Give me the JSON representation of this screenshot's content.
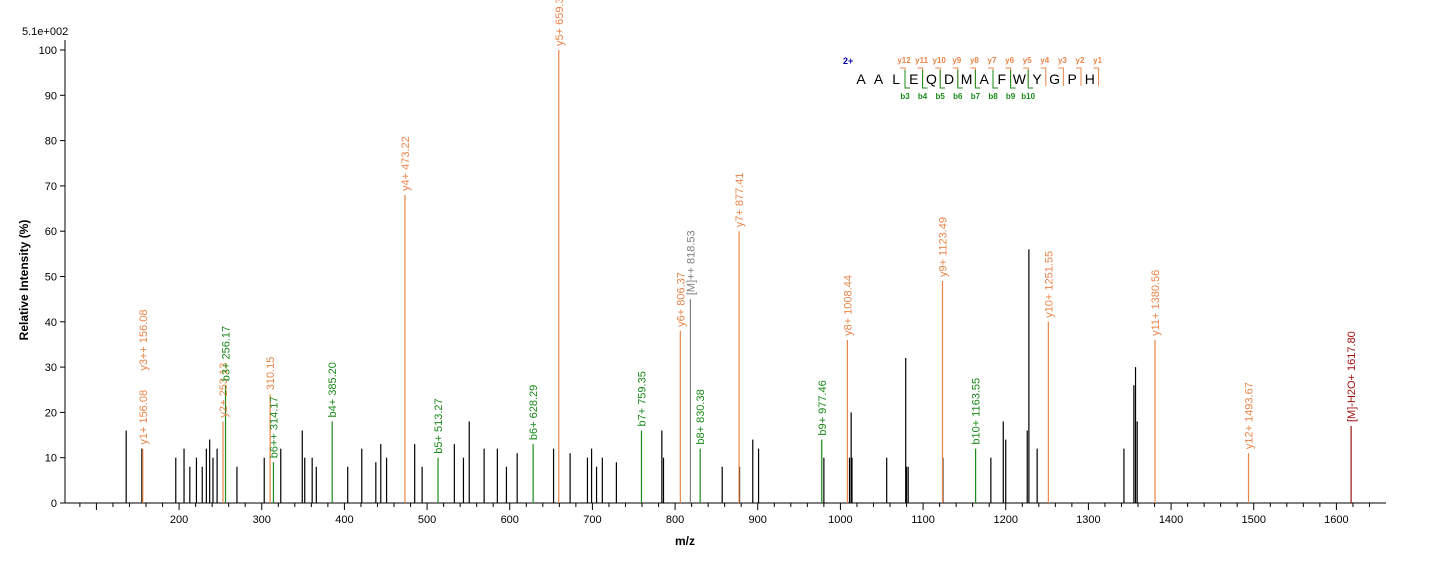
{
  "chart_data": {
    "type": "bar",
    "title": "",
    "xlabel": "m/z",
    "ylabel": "Relative   Intensity (%)",
    "y_max_label": "5.1e+002",
    "xlim": [
      62,
      1660
    ],
    "ylim": [
      0,
      100
    ],
    "x_ticks": [
      200,
      300,
      400,
      500,
      600,
      700,
      800,
      900,
      1000,
      1100,
      1200,
      1300,
      1400,
      1500,
      1600
    ],
    "y_ticks": [
      0,
      10,
      20,
      30,
      40,
      50,
      60,
      70,
      80,
      90,
      100
    ],
    "colors": {
      "y": "#E8854A",
      "b": "#1A8A1A",
      "precursor": "#7F7F7F",
      "water": "#A01010",
      "unassigned": "#000000",
      "charge": "#0000AA"
    },
    "labeled_peaks": [
      {
        "mz": 156.08,
        "intensity": 12,
        "ion": "y",
        "label": "y1+ 156.08",
        "label2": "y3++ 156.08"
      },
      {
        "mz": 253.13,
        "intensity": 18,
        "ion": "y",
        "label": "y2+ 253.13"
      },
      {
        "mz": 256.17,
        "intensity": 26,
        "ion": "b",
        "label": "b3+ 256.17"
      },
      {
        "mz": 310.15,
        "intensity": 24,
        "ion": "y",
        "label": "310.15"
      },
      {
        "mz": 314.17,
        "intensity": 9,
        "ion": "b",
        "label": "b6++ 314.17"
      },
      {
        "mz": 385.2,
        "intensity": 18,
        "ion": "b",
        "label": "b4+ 385.20"
      },
      {
        "mz": 473.22,
        "intensity": 68,
        "ion": "y",
        "label": "y4+ 473.22"
      },
      {
        "mz": 513.27,
        "intensity": 10,
        "ion": "b",
        "label": "b5+ 513.27"
      },
      {
        "mz": 628.29,
        "intensity": 13,
        "ion": "b",
        "label": "b6+ 628.29"
      },
      {
        "mz": 659.3,
        "intensity": 100,
        "ion": "y",
        "label": "y5+ 659.30"
      },
      {
        "mz": 759.35,
        "intensity": 16,
        "ion": "b",
        "label": "b7+ 759.35"
      },
      {
        "mz": 806.37,
        "intensity": 38,
        "ion": "y",
        "label": "y6+ 806.37"
      },
      {
        "mz": 818.53,
        "intensity": 45,
        "ion": "precursor",
        "label": "[M]++ 818.53"
      },
      {
        "mz": 830.38,
        "intensity": 12,
        "ion": "b",
        "label": "b8+ 830.38"
      },
      {
        "mz": 877.41,
        "intensity": 60,
        "ion": "y",
        "label": "y7+ 877.41"
      },
      {
        "mz": 977.46,
        "intensity": 14,
        "ion": "b",
        "label": "b9+ 977.46"
      },
      {
        "mz": 1008.44,
        "intensity": 36,
        "ion": "y",
        "label": "y8+ 1008.44"
      },
      {
        "mz": 1123.49,
        "intensity": 49,
        "ion": "y",
        "label": "y9+ 1123.49"
      },
      {
        "mz": 1163.55,
        "intensity": 12,
        "ion": "b",
        "label": "b10+ 1163.55"
      },
      {
        "mz": 1251.55,
        "intensity": 40,
        "ion": "y",
        "label": "y10+ 1251.55"
      },
      {
        "mz": 1380.56,
        "intensity": 36,
        "ion": "y",
        "label": "y11+ 1380.56"
      },
      {
        "mz": 1493.67,
        "intensity": 11,
        "ion": "y",
        "label": "y12+ 1493.67"
      },
      {
        "mz": 1617.8,
        "intensity": 17,
        "ion": "water",
        "label": "[M]-H2O+ 1617.80"
      }
    ],
    "unlabeled_peaks": [
      [
        136,
        16
      ],
      [
        155,
        12
      ],
      [
        196,
        10
      ],
      [
        206,
        12
      ],
      [
        213,
        8
      ],
      [
        221,
        10
      ],
      [
        228,
        8
      ],
      [
        233,
        12
      ],
      [
        237,
        14
      ],
      [
        241,
        10
      ],
      [
        246,
        12
      ],
      [
        270,
        8
      ],
      [
        303,
        10
      ],
      [
        323,
        12
      ],
      [
        349,
        16
      ],
      [
        352,
        10
      ],
      [
        361,
        10
      ],
      [
        366,
        8
      ],
      [
        404,
        8
      ],
      [
        421,
        12
      ],
      [
        438,
        9
      ],
      [
        444,
        13
      ],
      [
        451,
        10
      ],
      [
        485,
        13
      ],
      [
        494,
        8
      ],
      [
        533,
        13
      ],
      [
        544,
        10
      ],
      [
        551,
        18
      ],
      [
        569,
        12
      ],
      [
        585,
        12
      ],
      [
        596,
        8
      ],
      [
        609,
        11
      ],
      [
        653,
        12
      ],
      [
        673,
        11
      ],
      [
        694,
        10
      ],
      [
        699,
        12
      ],
      [
        705,
        8
      ],
      [
        712,
        10
      ],
      [
        729,
        9
      ],
      [
        784,
        16
      ],
      [
        786,
        10
      ],
      [
        857,
        8
      ],
      [
        878,
        8
      ],
      [
        894,
        14
      ],
      [
        901,
        12
      ],
      [
        980,
        10
      ],
      [
        1011,
        10
      ],
      [
        1013,
        20
      ],
      [
        1014,
        10
      ],
      [
        1056,
        10
      ],
      [
        1079,
        32
      ],
      [
        1080,
        8
      ],
      [
        1082,
        8
      ],
      [
        1124,
        10
      ],
      [
        1182,
        10
      ],
      [
        1197,
        18
      ],
      [
        1200,
        14
      ],
      [
        1226,
        16
      ],
      [
        1228,
        56
      ],
      [
        1238,
        12
      ],
      [
        1343,
        12
      ],
      [
        1355,
        26
      ],
      [
        1357,
        30
      ],
      [
        1359,
        18
      ]
    ],
    "sequence": {
      "charge": "2+",
      "residues": [
        "A",
        "A",
        "L",
        "E",
        "Q",
        "D",
        "M",
        "A",
        "F",
        "W",
        "Y",
        "G",
        "P",
        "H"
      ],
      "y_ions": [
        "y12",
        "y11",
        "y10",
        "y9",
        "y8",
        "y7",
        "y6",
        "y5",
        "y4",
        "y3",
        "y2",
        "y1"
      ],
      "b_ions": [
        "b3",
        "b4",
        "b5",
        "b6",
        "b7",
        "b8",
        "b9",
        "b10"
      ]
    }
  }
}
